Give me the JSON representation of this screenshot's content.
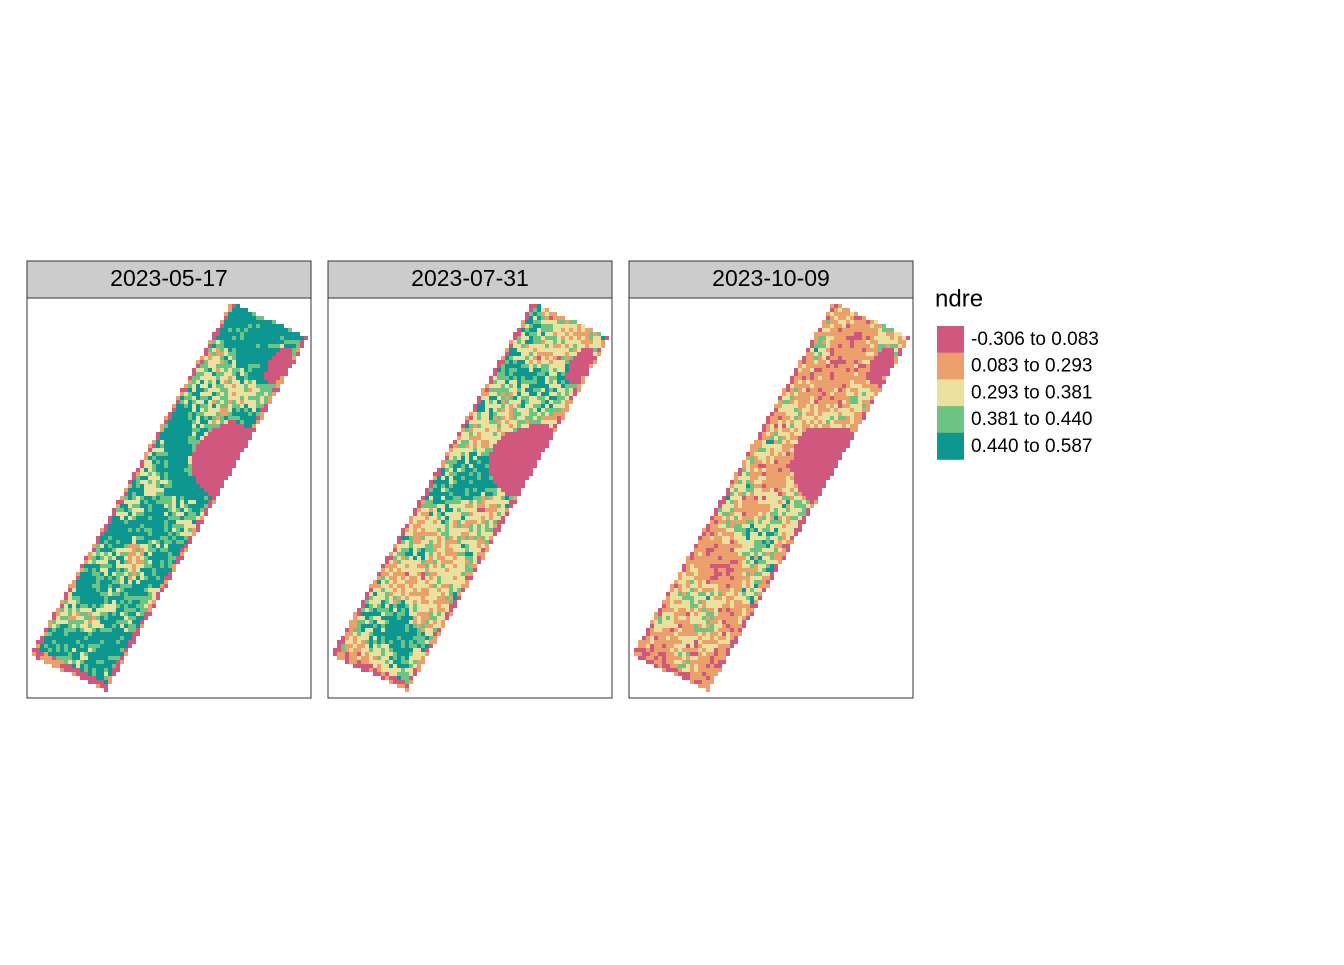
{
  "panels": [
    {
      "title": "2023-05-17"
    },
    {
      "title": "2023-07-31"
    },
    {
      "title": "2023-10-09"
    }
  ],
  "legend": {
    "title": "ndre",
    "items": [
      {
        "label": "-0.306 to 0.083",
        "color": "#d0587e"
      },
      {
        "label": "0.083 to 0.293",
        "color": "#eba06c"
      },
      {
        "label": "0.293 to 0.381",
        "color": "#ebe19e"
      },
      {
        "label": "0.381 to 0.440",
        "color": "#6cc484"
      },
      {
        "label": "0.440 to 0.587",
        "color": "#0e9690"
      }
    ]
  }
}
